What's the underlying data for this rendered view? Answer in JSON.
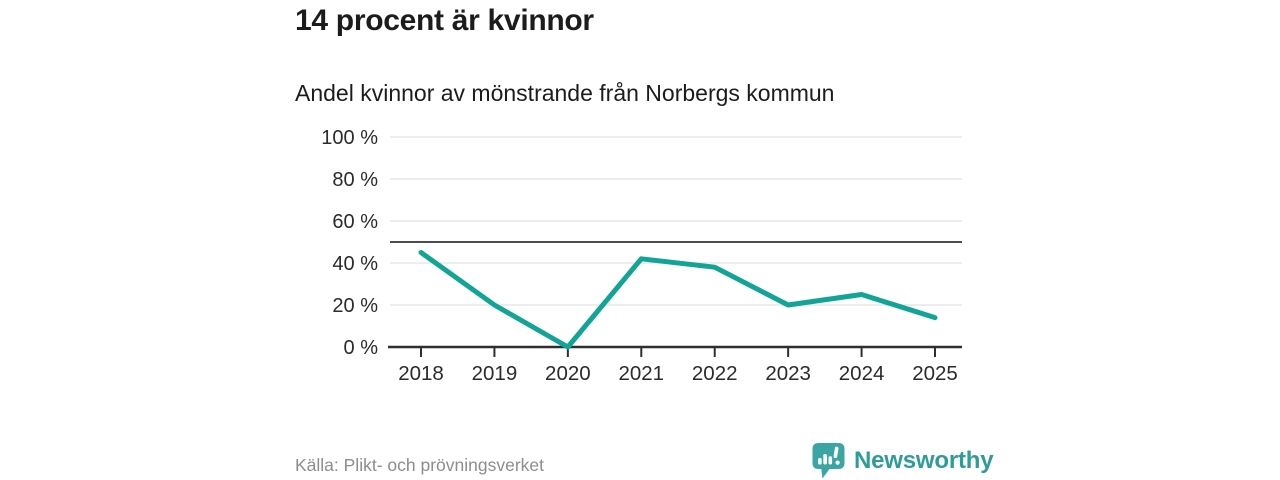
{
  "page": {
    "title": "14 procent är kvinnor",
    "subtitle": "Andel kvinnor av mönstrande från Norbergs kommun",
    "source": "Källa: Plikt- och prövningsverket",
    "brand": "Newsworthy",
    "headline_value": "14"
  },
  "colors": {
    "line": "#12a496",
    "grid": "#e2e2e2",
    "reference_line": "#4d4d4d",
    "axis": "#2f2f2f",
    "tick_label": "#2b2b2b",
    "title_text": "#1c1c1c",
    "source_text": "#8d8d8d",
    "brand_teal": "#2e9c9a",
    "logo_icon_teal": "#3ba5a3",
    "background": "#ffffff"
  },
  "chart_data": {
    "type": "line",
    "title": "14 procent är kvinnor",
    "subtitle": "Andel kvinnor av mönstrande från Norbergs kommun",
    "x": [
      2018,
      2019,
      2020,
      2021,
      2022,
      2023,
      2024,
      2025
    ],
    "series": [
      {
        "name": "Andel kvinnor av mönstrande",
        "values": [
          45,
          20,
          0,
          42,
          38,
          20,
          25,
          14
        ]
      }
    ],
    "xlabel": "",
    "ylabel": "",
    "ylim": [
      0,
      100
    ],
    "yticks": [
      0,
      20,
      40,
      60,
      80,
      100
    ],
    "ytick_suffix": " %",
    "reference_line_y": 50,
    "grid": "horizontal",
    "legend_position": "none"
  }
}
